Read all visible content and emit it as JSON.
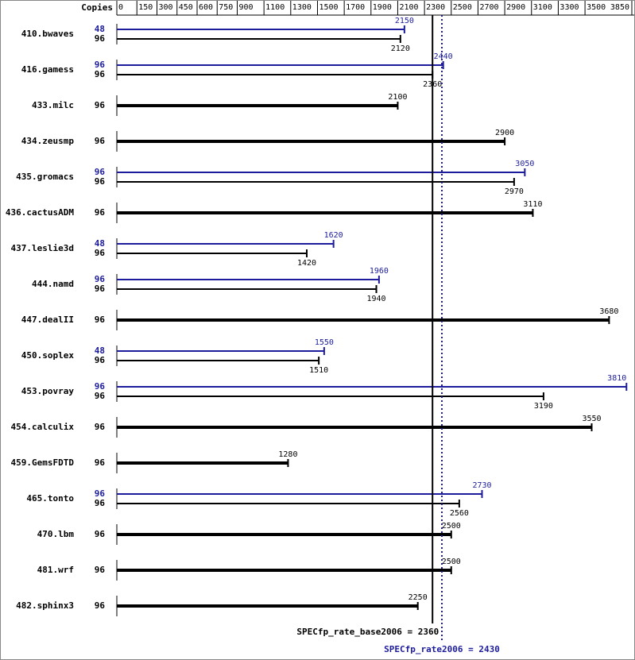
{
  "chart_data": {
    "type": "bar",
    "orientation": "horizontal",
    "copies_label": "Copies",
    "categories": [
      "410.bwaves",
      "416.gamess",
      "433.milc",
      "434.zeusmp",
      "435.gromacs",
      "436.cactusADM",
      "437.leslie3d",
      "444.namd",
      "447.dealII",
      "450.soplex",
      "453.povray",
      "454.calculix",
      "459.GemsFDTD",
      "465.tonto",
      "470.lbm",
      "481.wrf",
      "482.sphinx3"
    ],
    "series": [
      {
        "color": "#1c1c9c",
        "copies": [
          48,
          96,
          null,
          null,
          96,
          null,
          48,
          96,
          null,
          48,
          96,
          null,
          null,
          96,
          null,
          null,
          null
        ],
        "values": [
          2150,
          2440,
          null,
          null,
          3050,
          null,
          1620,
          1960,
          null,
          1550,
          3810,
          null,
          null,
          2730,
          null,
          null,
          null
        ]
      },
      {
        "color": "#000000",
        "copies": [
          96,
          96,
          96,
          96,
          96,
          96,
          96,
          96,
          96,
          96,
          96,
          96,
          96,
          96,
          96,
          96,
          96
        ],
        "values": [
          2120,
          2360,
          2100,
          2900,
          2970,
          3110,
          1420,
          1940,
          3680,
          1510,
          3190,
          3550,
          1280,
          2560,
          2500,
          2500,
          2250
        ]
      }
    ],
    "xlim": [
      0,
      3850
    ],
    "xticks": [
      0,
      150,
      300,
      450,
      600,
      750,
      900,
      1100,
      1300,
      1500,
      1700,
      1900,
      2100,
      2300,
      2500,
      2700,
      2900,
      3100,
      3300,
      3500,
      3850
    ],
    "reference_lines": [
      {
        "label": "SPECfp_rate_base2006 = 2360",
        "value": 2360,
        "color": "#000000",
        "dashed": false
      },
      {
        "label": "SPECfp_rate2006 = 2430",
        "value": 2430,
        "color": "#1c1c9c",
        "dashed": true
      }
    ]
  }
}
